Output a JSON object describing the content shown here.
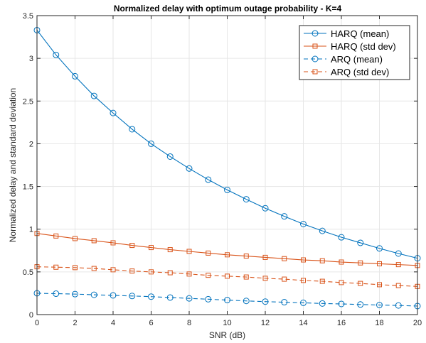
{
  "chart_data": {
    "type": "line",
    "title": "Normalized delay with optimum outage probability - K=4",
    "xlabel": "SNR (dB)",
    "ylabel": "Normalized delay and standard deviation",
    "xlim": [
      0,
      20
    ],
    "ylim": [
      0,
      3.5
    ],
    "xticks": [
      0,
      2,
      4,
      6,
      8,
      10,
      12,
      14,
      16,
      18,
      20
    ],
    "yticks": [
      0,
      0.5,
      1,
      1.5,
      2,
      2.5,
      3,
      3.5
    ],
    "xtick_labels": [
      "0",
      "2",
      "4",
      "6",
      "8",
      "10",
      "12",
      "14",
      "16",
      "18",
      "20"
    ],
    "ytick_labels": [
      "0",
      "0.5",
      "1",
      "1.5",
      "2",
      "2.5",
      "3",
      "3.5"
    ],
    "grid": true,
    "legend_position": "top-right",
    "x": [
      0,
      1,
      2,
      3,
      4,
      5,
      6,
      7,
      8,
      9,
      10,
      11,
      12,
      13,
      14,
      15,
      16,
      17,
      18,
      19,
      20
    ],
    "series": [
      {
        "name": "HARQ (mean)",
        "color": "#0072BD",
        "line_style": "solid",
        "marker": "circle",
        "values": [
          3.33,
          3.04,
          2.79,
          2.56,
          2.36,
          2.17,
          2.0,
          1.85,
          1.71,
          1.58,
          1.46,
          1.35,
          1.245,
          1.15,
          1.06,
          0.98,
          0.905,
          0.84,
          0.775,
          0.715,
          0.66
        ]
      },
      {
        "name": "HARQ (std dev)",
        "color": "#D95319",
        "line_style": "solid",
        "marker": "square",
        "values": [
          0.95,
          0.92,
          0.89,
          0.865,
          0.84,
          0.81,
          0.785,
          0.76,
          0.74,
          0.72,
          0.7,
          0.685,
          0.67,
          0.655,
          0.64,
          0.63,
          0.615,
          0.605,
          0.595,
          0.585,
          0.575
        ]
      },
      {
        "name": "ARQ (mean)",
        "color": "#0072BD",
        "line_style": "dashed",
        "marker": "circle",
        "values": [
          0.25,
          0.245,
          0.24,
          0.232,
          0.225,
          0.218,
          0.21,
          0.2,
          0.19,
          0.18,
          0.17,
          0.16,
          0.152,
          0.145,
          0.138,
          0.13,
          0.125,
          0.118,
          0.112,
          0.107,
          0.1
        ]
      },
      {
        "name": "ARQ  (std dev)",
        "color": "#D95319",
        "line_style": "dashed",
        "marker": "square",
        "values": [
          0.56,
          0.555,
          0.55,
          0.54,
          0.525,
          0.51,
          0.5,
          0.49,
          0.475,
          0.46,
          0.45,
          0.44,
          0.425,
          0.415,
          0.4,
          0.39,
          0.375,
          0.365,
          0.35,
          0.34,
          0.33
        ]
      }
    ]
  }
}
